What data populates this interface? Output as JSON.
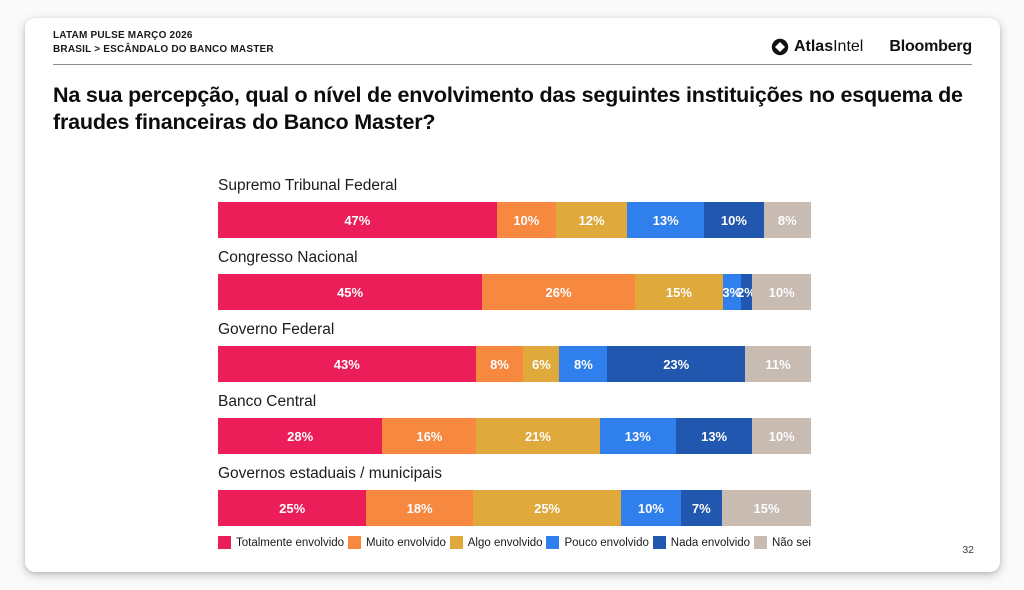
{
  "header": {
    "kicker_line1": "LATAM PULSE MARÇO 2026",
    "kicker_line2": "BRASIL > ESCÂNDALO DO BANCO MASTER",
    "logos": {
      "atlasintel_bold": "Atlas",
      "atlasintel_light": "Intel",
      "bloomberg": "Bloomberg"
    }
  },
  "title": "Na sua percepção, qual o nível de envolvimento das seguintes instituições no esquema de fraudes financeiras do Banco Master?",
  "page_number": "32",
  "chart_data": {
    "type": "bar",
    "variant": "horizontal_stacked_100",
    "unit": "%",
    "value_labels": "inside",
    "legend_position": "bottom",
    "xlim": [
      0,
      100
    ],
    "categories": [
      "Supremo Tribunal Federal",
      "Congresso Nacional",
      "Governo Federal",
      "Banco Central",
      "Governos estaduais / municipais"
    ],
    "series": [
      {
        "name": "Totalmente envolvido",
        "color": "#EC1E59",
        "values": [
          47,
          45,
          43,
          28,
          25
        ]
      },
      {
        "name": "Muito envolvido",
        "color": "#F6883F",
        "values": [
          10,
          26,
          8,
          16,
          18
        ]
      },
      {
        "name": "Algo envolvido",
        "color": "#E0A93B",
        "values": [
          12,
          15,
          6,
          21,
          25
        ]
      },
      {
        "name": "Pouco envolvido",
        "color": "#2F80EC",
        "values": [
          13,
          3,
          8,
          13,
          10
        ]
      },
      {
        "name": "Nada envolvido",
        "color": "#2157AE",
        "values": [
          10,
          2,
          23,
          13,
          7
        ]
      },
      {
        "name": "Não sei",
        "color": "#C8BBB2",
        "values": [
          8,
          10,
          11,
          10,
          15
        ]
      }
    ]
  }
}
